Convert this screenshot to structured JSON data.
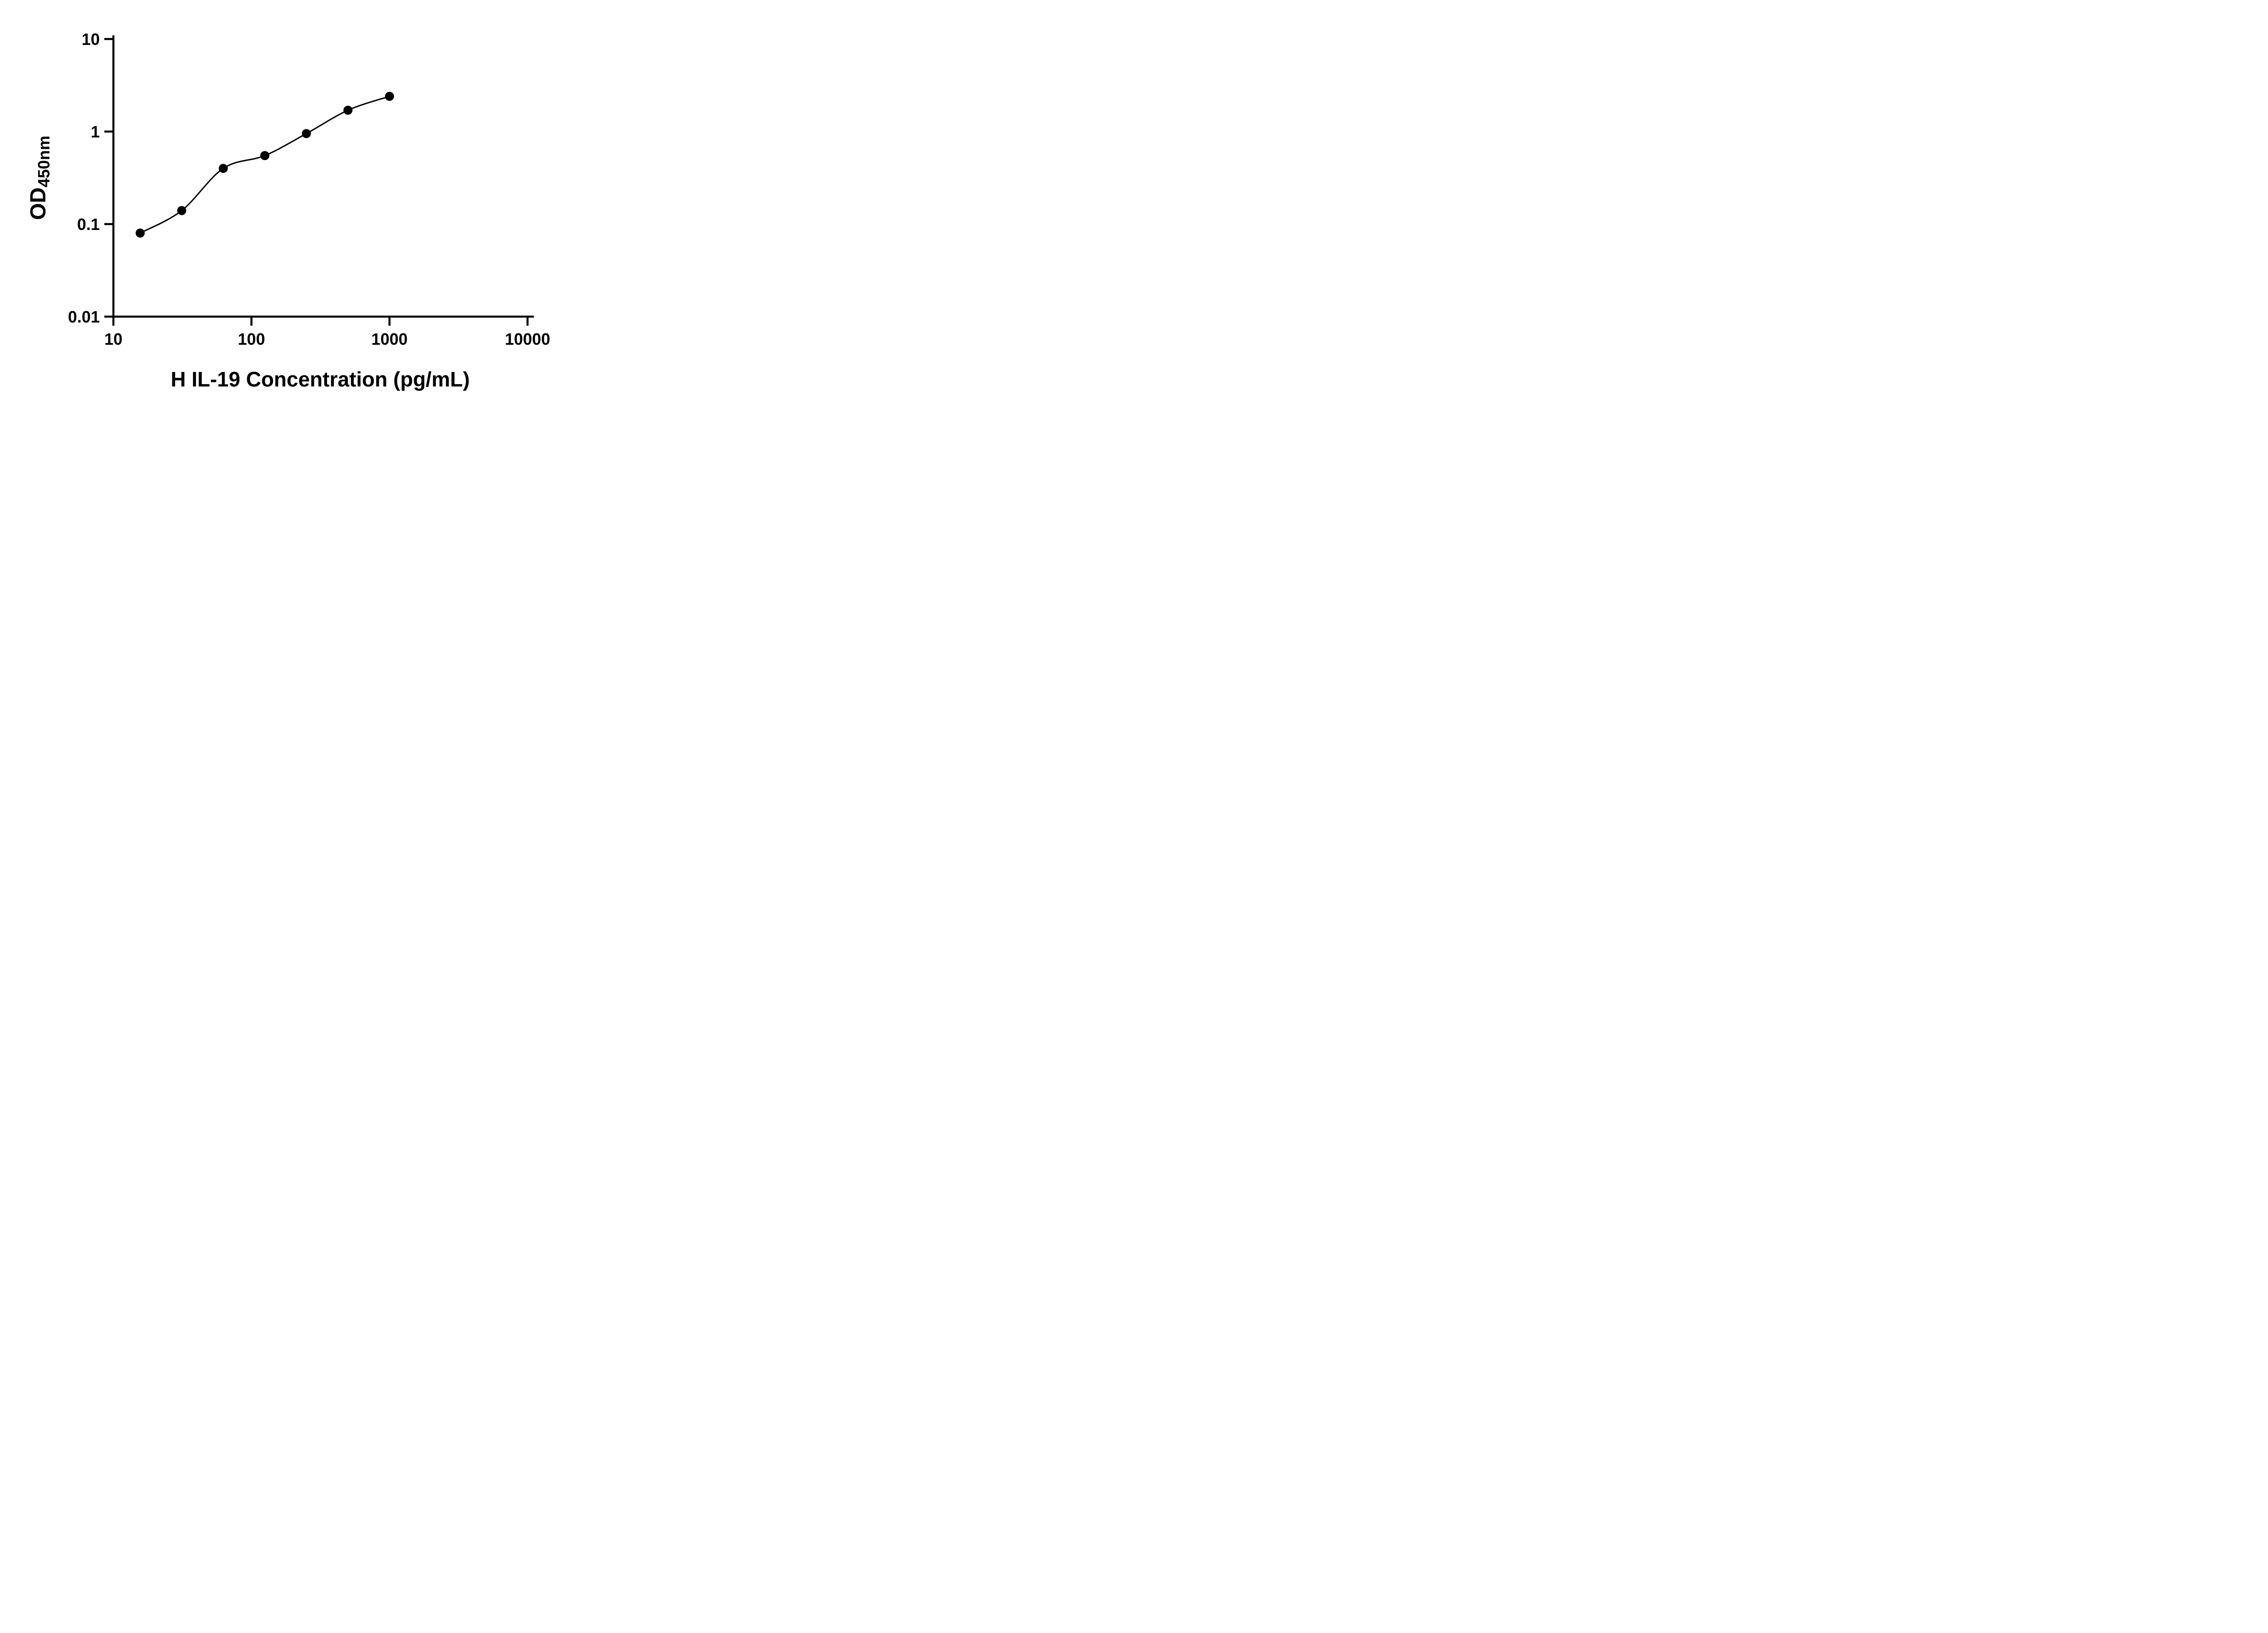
{
  "figure": {
    "description_label": "ELISA standard curve figure"
  },
  "colors": {
    "foreground": "#000000",
    "background": "#ffffff"
  },
  "chart_data": {
    "type": "scatter",
    "subtype": "scatter-with-fitted-line",
    "title": "",
    "xlabel": "H IL-19 Concentration (pg/mL)",
    "ylabel": "OD450nm",
    "ylabel_main": "OD",
    "ylabel_sub": "450nm",
    "xscale": "log",
    "yscale": "log",
    "xlim": [
      10,
      10000
    ],
    "ylim": [
      0.01,
      10
    ],
    "x_ticks": [
      10,
      100,
      1000,
      10000
    ],
    "y_ticks": [
      0.01,
      0.1,
      1,
      10
    ],
    "x_tick_labels": [
      "10",
      "100",
      "1000",
      "10000"
    ],
    "y_tick_labels": [
      "0.01",
      "0.1",
      "1",
      "10"
    ],
    "grid": false,
    "legend": false,
    "marker": "filled-circle",
    "marker_color": "#000000",
    "line_color": "#000000",
    "x": [
      15.625,
      31.25,
      62.5,
      125,
      250,
      500,
      1000
    ],
    "y": [
      0.08,
      0.14,
      0.4,
      0.55,
      0.95,
      1.7,
      2.4
    ]
  }
}
